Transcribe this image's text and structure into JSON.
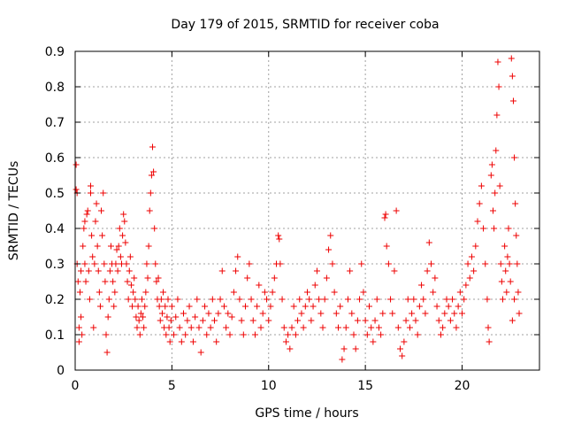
{
  "chart_data": {
    "type": "scatter",
    "title": "Day 179 of 2015, SRMTID for receiver coba",
    "xlabel": "GPS time / hours",
    "ylabel": "SRMTID / TECUs",
    "xlim": [
      0,
      24
    ],
    "ylim": [
      0,
      0.9
    ],
    "xticks": [
      0,
      5,
      10,
      15,
      20
    ],
    "xtick_labels": [
      "0",
      "5",
      "10",
      "15",
      "20"
    ],
    "yticks": [
      0,
      0.1,
      0.2,
      0.3,
      0.4,
      0.5,
      0.6,
      0.7,
      0.8,
      0.9
    ],
    "ytick_labels": [
      "0",
      "0.1",
      "0.2",
      "0.3",
      "0.4",
      "0.5",
      "0.6",
      "0.7",
      "0.8",
      "0.9"
    ],
    "grid": true,
    "marker": "+",
    "color": "#ee0000",
    "series": [
      {
        "name": "SRMTID",
        "points": [
          [
            0.05,
            0.58
          ],
          [
            0.05,
            0.51
          ],
          [
            0.1,
            0.5
          ],
          [
            0.1,
            0.3
          ],
          [
            0.15,
            0.25
          ],
          [
            0.2,
            0.12
          ],
          [
            0.2,
            0.08
          ],
          [
            0.25,
            0.22
          ],
          [
            0.3,
            0.15
          ],
          [
            0.3,
            0.28
          ],
          [
            0.35,
            0.1
          ],
          [
            0.4,
            0.35
          ],
          [
            0.45,
            0.4
          ],
          [
            0.5,
            0.42
          ],
          [
            0.5,
            0.3
          ],
          [
            0.55,
            0.25
          ],
          [
            0.6,
            0.44
          ],
          [
            0.65,
            0.45
          ],
          [
            0.7,
            0.28
          ],
          [
            0.75,
            0.2
          ],
          [
            0.8,
            0.5
          ],
          [
            0.8,
            0.52
          ],
          [
            0.85,
            0.38
          ],
          [
            0.9,
            0.32
          ],
          [
            0.95,
            0.12
          ],
          [
            1.0,
            0.3
          ],
          [
            1.05,
            0.42
          ],
          [
            1.1,
            0.47
          ],
          [
            1.15,
            0.35
          ],
          [
            1.2,
            0.28
          ],
          [
            1.25,
            0.22
          ],
          [
            1.3,
            0.18
          ],
          [
            1.35,
            0.45
          ],
          [
            1.4,
            0.38
          ],
          [
            1.45,
            0.5
          ],
          [
            1.5,
            0.3
          ],
          [
            1.55,
            0.25
          ],
          [
            1.6,
            0.1
          ],
          [
            1.65,
            0.05
          ],
          [
            1.7,
            0.15
          ],
          [
            1.75,
            0.2
          ],
          [
            1.8,
            0.28
          ],
          [
            1.85,
            0.35
          ],
          [
            1.9,
            0.3
          ],
          [
            1.95,
            0.25
          ],
          [
            2.0,
            0.18
          ],
          [
            2.05,
            0.22
          ],
          [
            2.1,
            0.3
          ],
          [
            2.15,
            0.34
          ],
          [
            2.2,
            0.28
          ],
          [
            2.25,
            0.35
          ],
          [
            2.3,
            0.4
          ],
          [
            2.35,
            0.32
          ],
          [
            2.4,
            0.3
          ],
          [
            2.45,
            0.38
          ],
          [
            2.5,
            0.44
          ],
          [
            2.55,
            0.42
          ],
          [
            2.6,
            0.36
          ],
          [
            2.65,
            0.3
          ],
          [
            2.7,
            0.25
          ],
          [
            2.75,
            0.2
          ],
          [
            2.8,
            0.28
          ],
          [
            2.85,
            0.32
          ],
          [
            2.9,
            0.24
          ],
          [
            2.95,
            0.18
          ],
          [
            3.0,
            0.22
          ],
          [
            3.05,
            0.26
          ],
          [
            3.1,
            0.2
          ],
          [
            3.15,
            0.15
          ],
          [
            3.2,
            0.12
          ],
          [
            3.25,
            0.18
          ],
          [
            3.3,
            0.14
          ],
          [
            3.35,
            0.1
          ],
          [
            3.4,
            0.16
          ],
          [
            3.45,
            0.2
          ],
          [
            3.5,
            0.15
          ],
          [
            3.55,
            0.12
          ],
          [
            3.6,
            0.18
          ],
          [
            3.65,
            0.22
          ],
          [
            3.7,
            0.3
          ],
          [
            3.75,
            0.26
          ],
          [
            3.8,
            0.35
          ],
          [
            3.85,
            0.45
          ],
          [
            3.9,
            0.5
          ],
          [
            3.95,
            0.55
          ],
          [
            4.0,
            0.63
          ],
          [
            4.05,
            0.56
          ],
          [
            4.1,
            0.4
          ],
          [
            4.15,
            0.3
          ],
          [
            4.2,
            0.25
          ],
          [
            4.25,
            0.2
          ],
          [
            4.3,
            0.26
          ],
          [
            4.35,
            0.18
          ],
          [
            4.4,
            0.14
          ],
          [
            4.45,
            0.2
          ],
          [
            4.5,
            0.16
          ],
          [
            4.55,
            0.22
          ],
          [
            4.6,
            0.12
          ],
          [
            4.65,
            0.18
          ],
          [
            4.7,
            0.1
          ],
          [
            4.75,
            0.15
          ],
          [
            4.8,
            0.2
          ],
          [
            4.85,
            0.12
          ],
          [
            4.9,
            0.08
          ],
          [
            4.95,
            0.14
          ],
          [
            5.0,
            0.18
          ],
          [
            5.1,
            0.1
          ],
          [
            5.2,
            0.15
          ],
          [
            5.3,
            0.2
          ],
          [
            5.4,
            0.12
          ],
          [
            5.5,
            0.08
          ],
          [
            5.6,
            0.16
          ],
          [
            5.7,
            0.1
          ],
          [
            5.8,
            0.14
          ],
          [
            5.9,
            0.18
          ],
          [
            6.0,
            0.12
          ],
          [
            6.1,
            0.08
          ],
          [
            6.2,
            0.15
          ],
          [
            6.3,
            0.2
          ],
          [
            6.4,
            0.12
          ],
          [
            6.5,
            0.05
          ],
          [
            6.6,
            0.14
          ],
          [
            6.7,
            0.18
          ],
          [
            6.8,
            0.1
          ],
          [
            6.9,
            0.16
          ],
          [
            7.0,
            0.12
          ],
          [
            7.1,
            0.2
          ],
          [
            7.2,
            0.14
          ],
          [
            7.3,
            0.08
          ],
          [
            7.4,
            0.16
          ],
          [
            7.5,
            0.2
          ],
          [
            7.6,
            0.28
          ],
          [
            7.7,
            0.18
          ],
          [
            7.8,
            0.12
          ],
          [
            7.9,
            0.16
          ],
          [
            8.0,
            0.1
          ],
          [
            8.1,
            0.15
          ],
          [
            8.2,
            0.22
          ],
          [
            8.3,
            0.28
          ],
          [
            8.4,
            0.32
          ],
          [
            8.5,
            0.2
          ],
          [
            8.6,
            0.14
          ],
          [
            8.7,
            0.1
          ],
          [
            8.8,
            0.18
          ],
          [
            8.9,
            0.26
          ],
          [
            9.0,
            0.3
          ],
          [
            9.1,
            0.2
          ],
          [
            9.2,
            0.14
          ],
          [
            9.3,
            0.1
          ],
          [
            9.4,
            0.18
          ],
          [
            9.5,
            0.24
          ],
          [
            9.6,
            0.12
          ],
          [
            9.7,
            0.16
          ],
          [
            9.8,
            0.22
          ],
          [
            9.9,
            0.2
          ],
          [
            10.0,
            0.14
          ],
          [
            10.1,
            0.18
          ],
          [
            10.2,
            0.22
          ],
          [
            10.3,
            0.26
          ],
          [
            10.4,
            0.3
          ],
          [
            10.5,
            0.38
          ],
          [
            10.55,
            0.37
          ],
          [
            10.6,
            0.3
          ],
          [
            10.7,
            0.2
          ],
          [
            10.8,
            0.12
          ],
          [
            10.9,
            0.08
          ],
          [
            11.0,
            0.1
          ],
          [
            11.1,
            0.06
          ],
          [
            11.2,
            0.12
          ],
          [
            11.3,
            0.18
          ],
          [
            11.4,
            0.1
          ],
          [
            11.5,
            0.14
          ],
          [
            11.6,
            0.2
          ],
          [
            11.7,
            0.16
          ],
          [
            11.8,
            0.12
          ],
          [
            11.9,
            0.18
          ],
          [
            12.0,
            0.22
          ],
          [
            12.1,
            0.2
          ],
          [
            12.2,
            0.14
          ],
          [
            12.3,
            0.18
          ],
          [
            12.4,
            0.24
          ],
          [
            12.5,
            0.28
          ],
          [
            12.6,
            0.2
          ],
          [
            12.7,
            0.16
          ],
          [
            12.8,
            0.12
          ],
          [
            12.9,
            0.2
          ],
          [
            13.0,
            0.26
          ],
          [
            13.1,
            0.34
          ],
          [
            13.2,
            0.38
          ],
          [
            13.3,
            0.3
          ],
          [
            13.4,
            0.22
          ],
          [
            13.5,
            0.16
          ],
          [
            13.6,
            0.12
          ],
          [
            13.7,
            0.18
          ],
          [
            13.8,
            0.03
          ],
          [
            13.9,
            0.06
          ],
          [
            14.0,
            0.12
          ],
          [
            14.1,
            0.2
          ],
          [
            14.2,
            0.28
          ],
          [
            14.3,
            0.16
          ],
          [
            14.4,
            0.1
          ],
          [
            14.5,
            0.06
          ],
          [
            14.6,
            0.14
          ],
          [
            14.7,
            0.2
          ],
          [
            14.8,
            0.3
          ],
          [
            14.9,
            0.22
          ],
          [
            15.0,
            0.14
          ],
          [
            15.1,
            0.1
          ],
          [
            15.2,
            0.18
          ],
          [
            15.3,
            0.12
          ],
          [
            15.4,
            0.08
          ],
          [
            15.5,
            0.14
          ],
          [
            15.6,
            0.2
          ],
          [
            15.7,
            0.12
          ],
          [
            15.8,
            0.1
          ],
          [
            15.9,
            0.16
          ],
          [
            16.0,
            0.43
          ],
          [
            16.05,
            0.44
          ],
          [
            16.1,
            0.35
          ],
          [
            16.2,
            0.3
          ],
          [
            16.3,
            0.2
          ],
          [
            16.4,
            0.16
          ],
          [
            16.5,
            0.28
          ],
          [
            16.6,
            0.45
          ],
          [
            16.7,
            0.12
          ],
          [
            16.8,
            0.06
          ],
          [
            16.9,
            0.04
          ],
          [
            17.0,
            0.08
          ],
          [
            17.1,
            0.14
          ],
          [
            17.2,
            0.2
          ],
          [
            17.3,
            0.12
          ],
          [
            17.4,
            0.16
          ],
          [
            17.5,
            0.2
          ],
          [
            17.6,
            0.14
          ],
          [
            17.7,
            0.1
          ],
          [
            17.8,
            0.18
          ],
          [
            17.9,
            0.24
          ],
          [
            18.0,
            0.2
          ],
          [
            18.1,
            0.16
          ],
          [
            18.2,
            0.28
          ],
          [
            18.3,
            0.36
          ],
          [
            18.4,
            0.3
          ],
          [
            18.5,
            0.22
          ],
          [
            18.6,
            0.26
          ],
          [
            18.7,
            0.18
          ],
          [
            18.8,
            0.14
          ],
          [
            18.9,
            0.1
          ],
          [
            19.0,
            0.12
          ],
          [
            19.1,
            0.16
          ],
          [
            19.2,
            0.2
          ],
          [
            19.3,
            0.18
          ],
          [
            19.4,
            0.14
          ],
          [
            19.5,
            0.2
          ],
          [
            19.6,
            0.16
          ],
          [
            19.7,
            0.12
          ],
          [
            19.8,
            0.18
          ],
          [
            19.9,
            0.22
          ],
          [
            20.0,
            0.16
          ],
          [
            20.1,
            0.2
          ],
          [
            20.2,
            0.24
          ],
          [
            20.3,
            0.3
          ],
          [
            20.4,
            0.26
          ],
          [
            20.5,
            0.32
          ],
          [
            20.6,
            0.28
          ],
          [
            20.7,
            0.35
          ],
          [
            20.8,
            0.42
          ],
          [
            20.9,
            0.47
          ],
          [
            21.0,
            0.52
          ],
          [
            21.1,
            0.4
          ],
          [
            21.2,
            0.3
          ],
          [
            21.3,
            0.2
          ],
          [
            21.35,
            0.12
          ],
          [
            21.4,
            0.08
          ],
          [
            21.5,
            0.55
          ],
          [
            21.55,
            0.58
          ],
          [
            21.6,
            0.45
          ],
          [
            21.65,
            0.4
          ],
          [
            21.7,
            0.5
          ],
          [
            21.75,
            0.62
          ],
          [
            21.8,
            0.72
          ],
          [
            21.85,
            0.87
          ],
          [
            21.9,
            0.8
          ],
          [
            21.95,
            0.52
          ],
          [
            22.0,
            0.3
          ],
          [
            22.05,
            0.25
          ],
          [
            22.1,
            0.2
          ],
          [
            22.2,
            0.35
          ],
          [
            22.25,
            0.28
          ],
          [
            22.3,
            0.22
          ],
          [
            22.35,
            0.32
          ],
          [
            22.4,
            0.4
          ],
          [
            22.45,
            0.3
          ],
          [
            22.5,
            0.25
          ],
          [
            22.55,
            0.88
          ],
          [
            22.6,
            0.83
          ],
          [
            22.65,
            0.76
          ],
          [
            22.7,
            0.6
          ],
          [
            22.75,
            0.47
          ],
          [
            22.8,
            0.38
          ],
          [
            22.85,
            0.3
          ],
          [
            22.9,
            0.22
          ],
          [
            22.95,
            0.16
          ],
          [
            22.6,
            0.14
          ],
          [
            22.7,
            0.2
          ]
        ]
      }
    ]
  }
}
